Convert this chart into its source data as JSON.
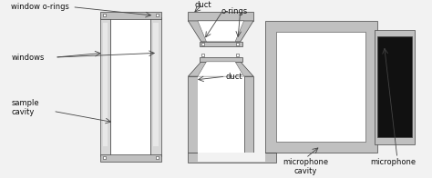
{
  "bg_color": "#f2f2f2",
  "gray_dark": "#888888",
  "gray_mid": "#aaaaaa",
  "gray_light": "#c0c0c0",
  "gray_lighter": "#d8d8d8",
  "white": "#ffffff",
  "black": "#111111",
  "line_color": "#444444",
  "text_color": "#111111",
  "font_size": 6.0,
  "labels": {
    "window_orings": "window o-rings",
    "windows": "windows",
    "sample_cavity": "sample\ncavity",
    "duct_top": "duct",
    "orings_top": "o-rings",
    "duct_bottom": "duct",
    "microphone_cavity": "microphone\ncavity",
    "microphone": "microphone"
  }
}
